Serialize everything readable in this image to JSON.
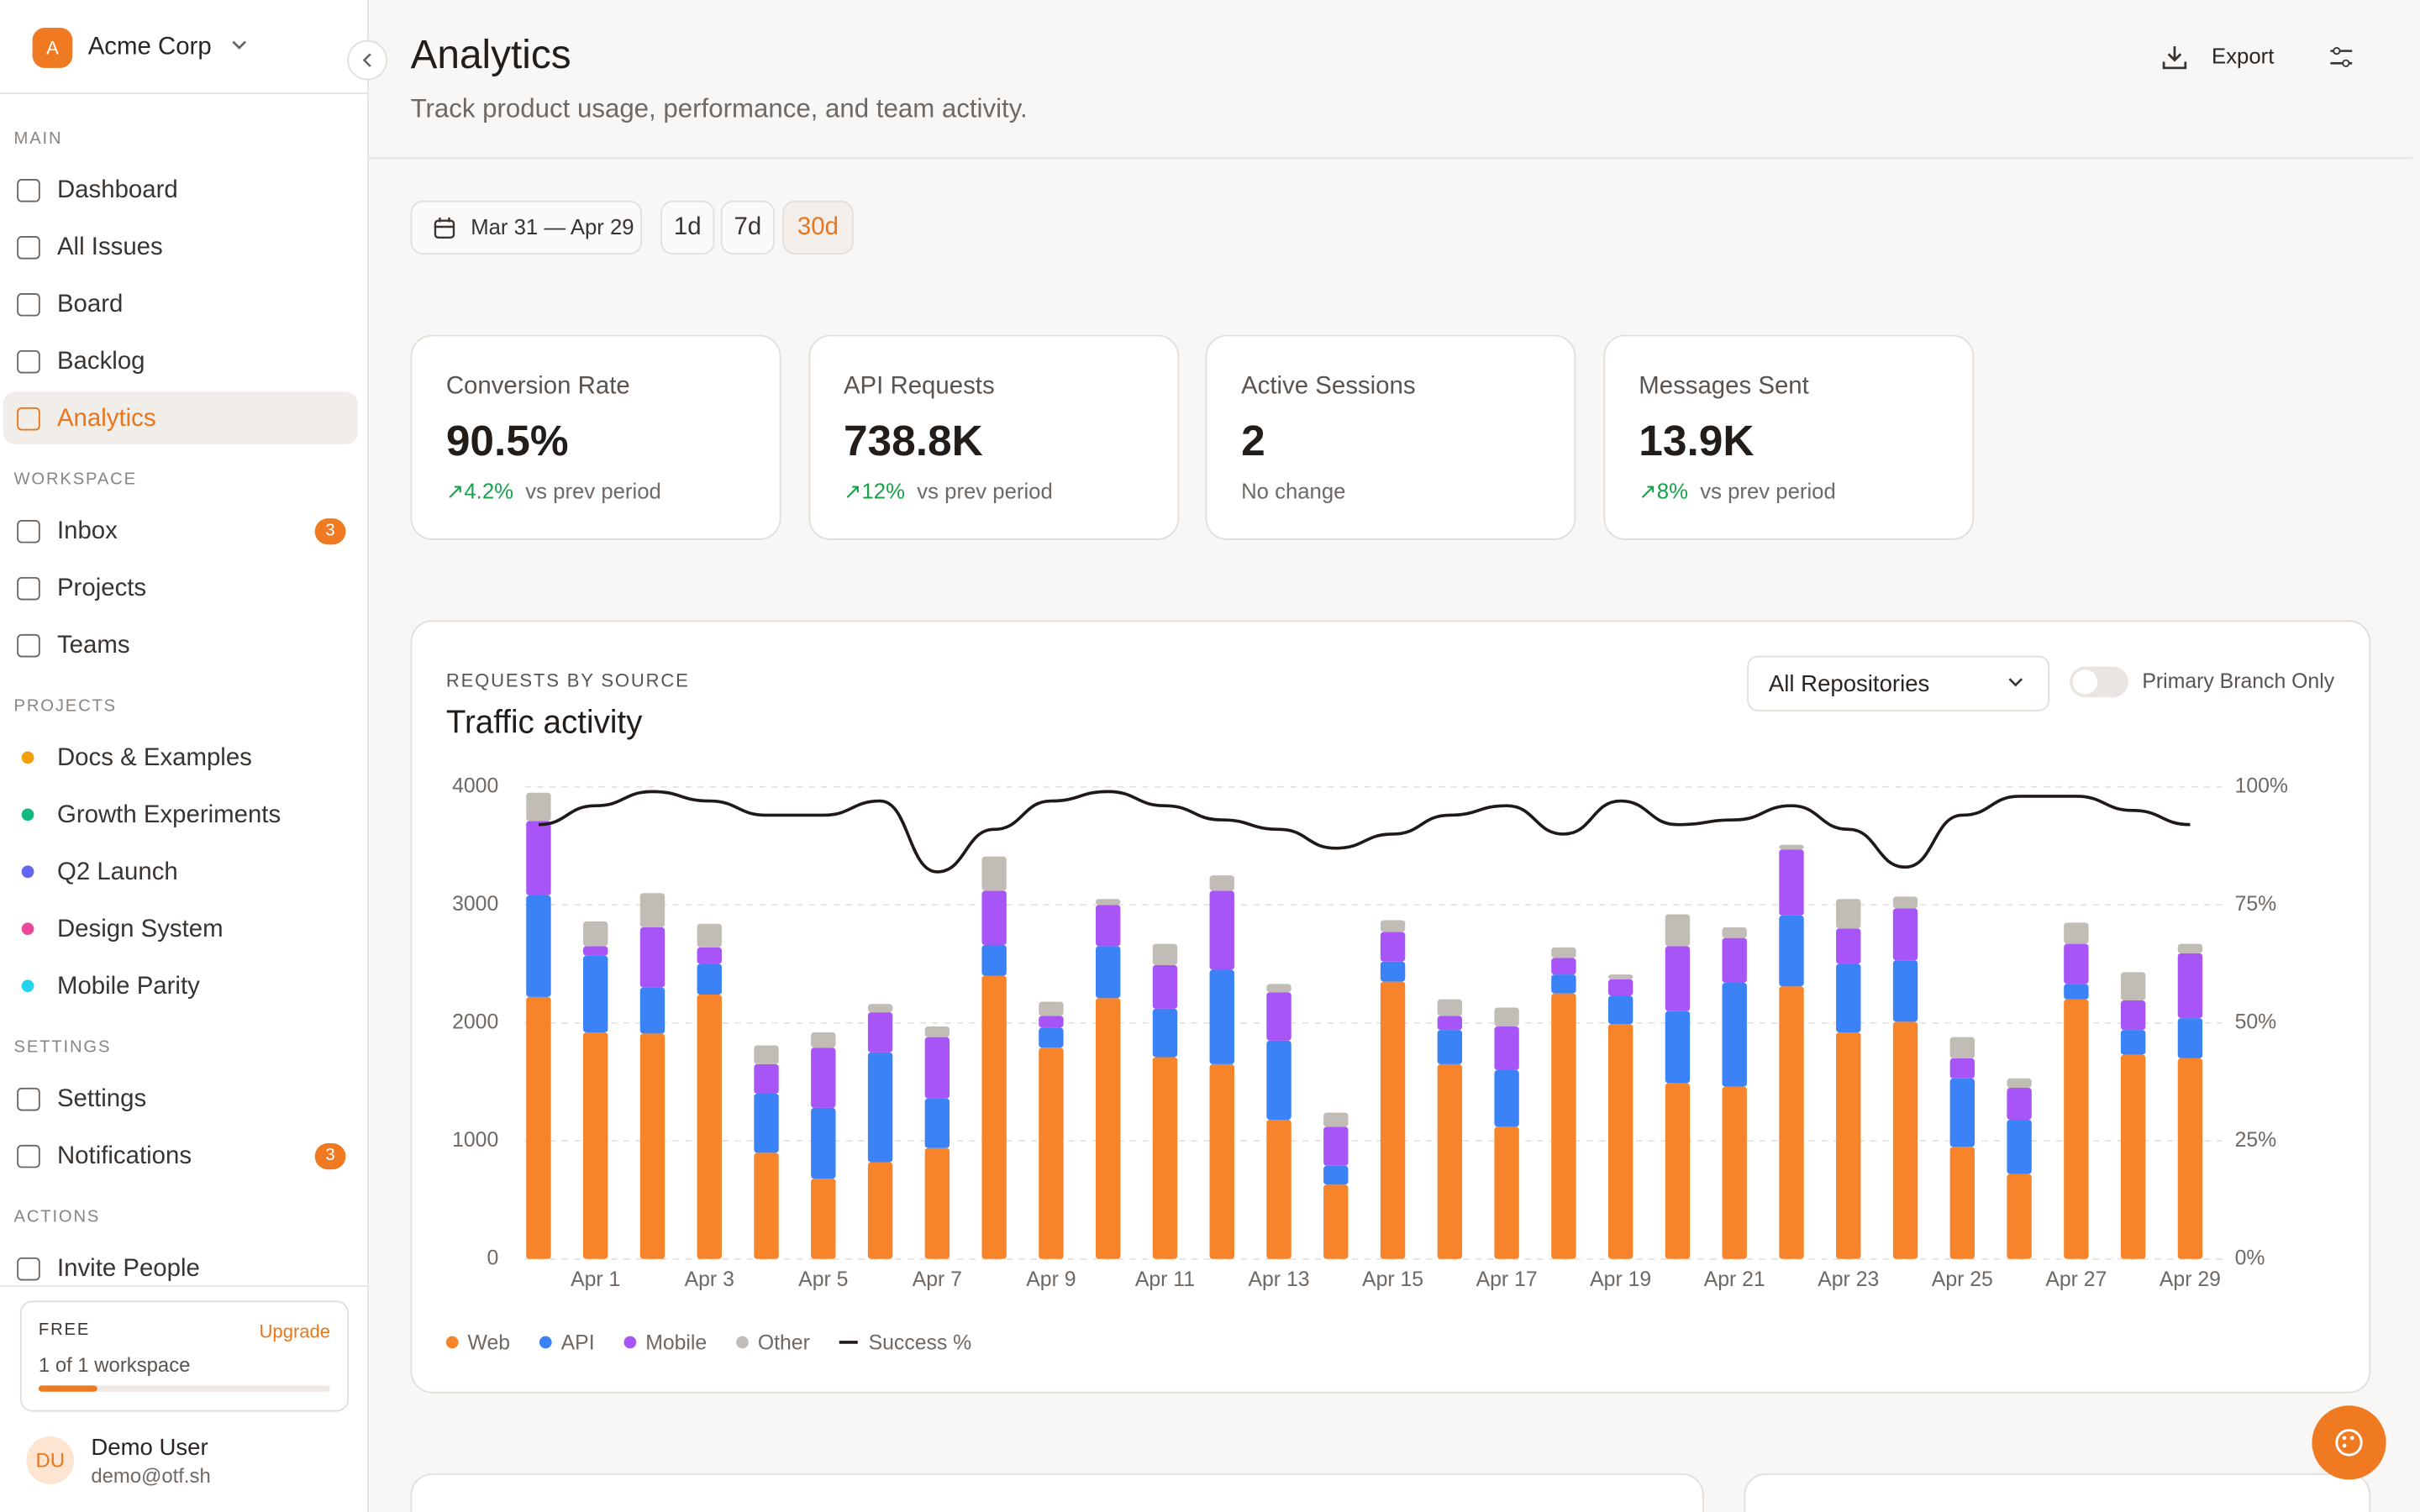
{
  "sidebar": {
    "org_initial": "A",
    "org": "Acme Corp",
    "sections": [
      {
        "title": "MAIN",
        "items": [
          {
            "label": "Dashboard"
          },
          {
            "label": "All Issues"
          },
          {
            "label": "Board"
          },
          {
            "label": "Backlog"
          },
          {
            "label": "Analytics",
            "active": true
          }
        ]
      },
      {
        "title": "WORKSPACE",
        "items": [
          {
            "label": "Inbox",
            "badge": "3"
          },
          {
            "label": "Projects"
          },
          {
            "label": "Teams"
          }
        ]
      },
      {
        "title": "PROJECTS",
        "items": [
          {
            "label": "Docs & Examples",
            "dot": "#f59e0b"
          },
          {
            "label": "Growth Experiments",
            "dot": "#10b981"
          },
          {
            "label": "Q2 Launch",
            "dot": "#6366f1"
          },
          {
            "label": "Design System",
            "dot": "#ec4899"
          },
          {
            "label": "Mobile Parity",
            "dot": "#22d3ee"
          }
        ]
      },
      {
        "title": "SETTINGS",
        "items": [
          {
            "label": "Settings"
          },
          {
            "label": "Notifications",
            "badge": "3"
          }
        ]
      },
      {
        "title": "ACTIONS",
        "items": [
          {
            "label": "Invite People"
          }
        ]
      }
    ],
    "plan": {
      "name": "FREE",
      "action": "Upgrade",
      "usage": "1 of 1 workspace"
    },
    "user": {
      "initials": "DU",
      "name": "Demo User",
      "email": "demo@otf.sh"
    }
  },
  "header": {
    "title": "Analytics",
    "subtitle": "Track product usage, performance, and team activity.",
    "export": "Export"
  },
  "filters": {
    "date_range": "Mar 31 — Apr 29",
    "ranges": [
      "1d",
      "7d",
      "30d"
    ],
    "active_range": 2
  },
  "kpis": [
    {
      "label": "Conversion Rate",
      "value": "90.5%",
      "change": "4.2%",
      "note": "vs prev period"
    },
    {
      "label": "API Requests",
      "value": "738.8K",
      "change": "12%",
      "note": "vs prev period"
    },
    {
      "label": "Active Sessions",
      "value": "2",
      "note": "No change"
    },
    {
      "label": "Messages Sent",
      "value": "13.9K",
      "change": "8%",
      "note": "vs prev period"
    }
  ],
  "chart_card": {
    "eyebrow": "REQUESTS BY SOURCE",
    "repo_select": "All Repositories",
    "toggle_label": "Primary Branch Only"
  },
  "chart_data": {
    "type": "bar",
    "stacked": true,
    "title": "Traffic activity",
    "categories": [
      null,
      "Apr 1",
      null,
      "Apr 3",
      null,
      "Apr 5",
      null,
      "Apr 7",
      null,
      "Apr 9",
      null,
      "Apr 11",
      null,
      "Apr 13",
      null,
      "Apr 15",
      null,
      "Apr 17",
      null,
      "Apr 19",
      null,
      "Apr 21",
      null,
      "Apr 23",
      null,
      "Apr 25",
      null,
      "Apr 27",
      null,
      "Apr 29"
    ],
    "series": [
      {
        "name": "Web",
        "color": "#f7832a",
        "values": [
          2220,
          1920,
          1910,
          2240,
          900,
          680,
          820,
          940,
          2400,
          1790,
          2210,
          1710,
          1650,
          1180,
          630,
          2350,
          1650,
          1120,
          2250,
          1990,
          1490,
          1460,
          2310,
          1920,
          2010,
          950,
          720,
          2200,
          1730,
          1700
        ]
      },
      {
        "name": "API",
        "color": "#3b82f6",
        "values": [
          860,
          650,
          390,
          260,
          500,
          600,
          930,
          420,
          260,
          170,
          440,
          410,
          800,
          670,
          160,
          170,
          290,
          480,
          160,
          240,
          610,
          880,
          600,
          580,
          520,
          580,
          460,
          130,
          210,
          340
        ]
      },
      {
        "name": "Mobile",
        "color": "#a855f7",
        "values": [
          630,
          80,
          510,
          140,
          250,
          510,
          340,
          520,
          460,
          100,
          350,
          370,
          670,
          410,
          330,
          250,
          120,
          370,
          140,
          140,
          550,
          380,
          560,
          300,
          440,
          170,
          270,
          340,
          250,
          550
        ]
      },
      {
        "name": "Other",
        "color": "#c2bcb7",
        "values": [
          240,
          210,
          290,
          200,
          160,
          130,
          70,
          90,
          290,
          120,
          50,
          180,
          130,
          70,
          120,
          100,
          140,
          160,
          90,
          40,
          270,
          90,
          40,
          250,
          100,
          180,
          80,
          180,
          240,
          80
        ]
      },
      {
        "name": "Success %",
        "type": "line",
        "axis": "y2",
        "color": "#1f1a17",
        "values": [
          92,
          96,
          99,
          97,
          94,
          94,
          97,
          82,
          91,
          97,
          99,
          96,
          93,
          91,
          87,
          90,
          94,
          96,
          90,
          97,
          92,
          93,
          96,
          91,
          83,
          94,
          98,
          98,
          95,
          92
        ]
      }
    ],
    "ylim": [
      0,
      4000
    ],
    "yticks": [
      0,
      1000,
      2000,
      3000,
      4000
    ],
    "y2lim": [
      0,
      100
    ],
    "y2ticks": [
      {
        "value": 0,
        "label": "0%"
      },
      {
        "value": 25,
        "label": "25%"
      },
      {
        "value": 50,
        "label": "50%"
      },
      {
        "value": 75,
        "label": "75%"
      },
      {
        "value": 100,
        "label": "100%"
      }
    ],
    "grid": true
  }
}
